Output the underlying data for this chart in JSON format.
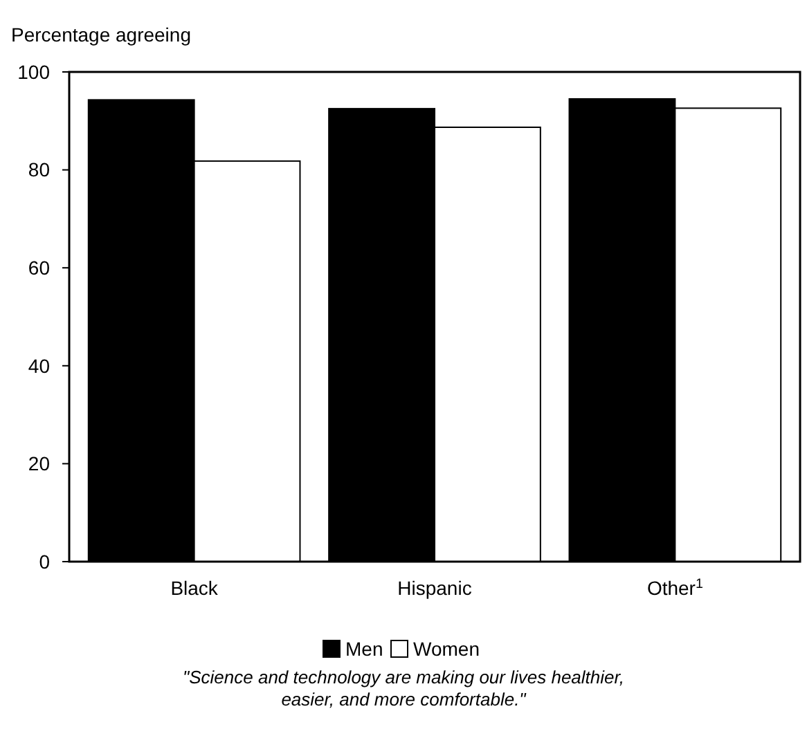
{
  "chart_data": {
    "type": "bar",
    "ylabel": "Percentage agreeing",
    "categories": [
      "Black",
      "Hispanic",
      "Other$^{1}$"
    ],
    "series": [
      {
        "name": "Men",
        "color": "#000000",
        "values": [
          94.3,
          92.5,
          94.5
        ]
      },
      {
        "name": "Women",
        "color": "#ffffff",
        "values": [
          81.8,
          88.7,
          92.6
        ]
      }
    ],
    "ylim": [
      0,
      100
    ],
    "yticks": [
      0,
      20,
      40,
      60,
      80,
      100
    ],
    "legend": "bottom",
    "grid": false,
    "annotations": [
      "\"Science and technology are making our lives healthier, easier, and more comfortable.\""
    ]
  }
}
